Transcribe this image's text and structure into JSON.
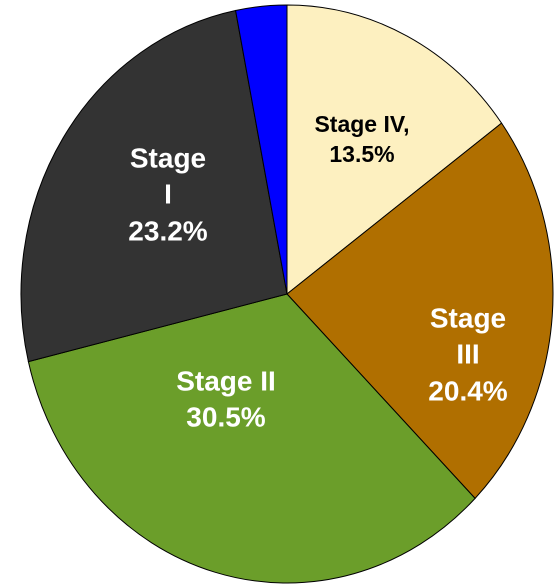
{
  "chart_data": {
    "type": "pie",
    "categories": [
      "Stage IV,",
      "Stage III",
      "Stage II",
      "Stage I",
      null
    ],
    "values": [
      13.5,
      20.4,
      30.5,
      23.2,
      2.8
    ],
    "value_labels": [
      "13.5%",
      "20.4%",
      "30.5%",
      "23.2%",
      null
    ],
    "colors": [
      "#fdf0c0",
      "#b06f00",
      "#6b9e2a",
      "#333333",
      "#0000ff"
    ]
  }
}
